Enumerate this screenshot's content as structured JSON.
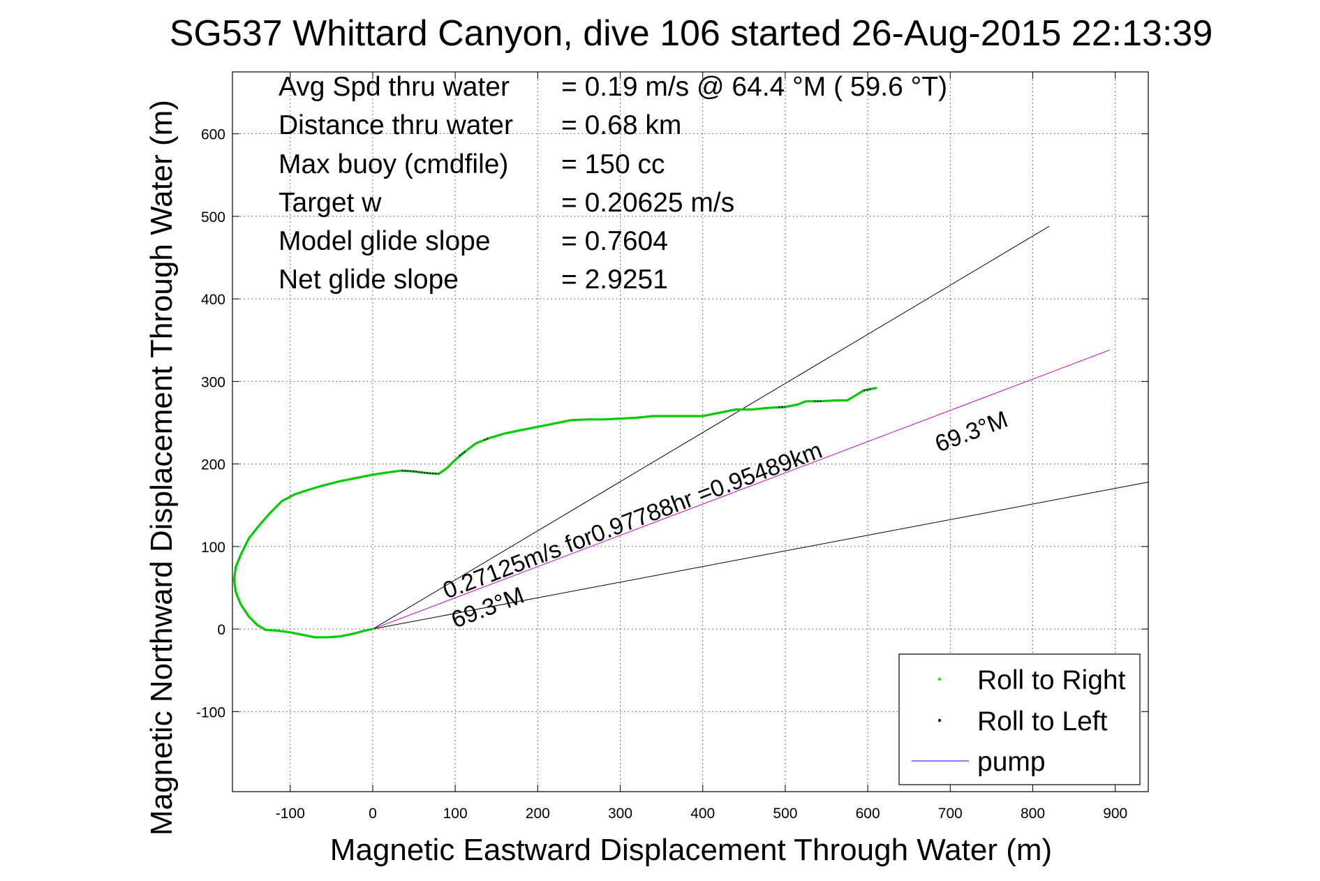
{
  "chart_data": {
    "type": "line",
    "title": "SG537 Whittard Canyon, dive 106 started 26-Aug-2015 22:13:39",
    "xlabel": "Magnetic Eastward Displacement Through Water (m)",
    "ylabel": "Magnetic Northward Displacement Through Water (m)",
    "xlim": [
      -170,
      940
    ],
    "ylim": [
      -197,
      675
    ],
    "xticks": [
      -100,
      0,
      100,
      200,
      300,
      400,
      500,
      600,
      700,
      800,
      900
    ],
    "yticks": [
      -100,
      0,
      100,
      200,
      300,
      400,
      500,
      600
    ],
    "grid": true,
    "legend_position": "bottom-right",
    "info_lines": [
      {
        "label": "Avg Spd thru water",
        "value": "=  0.19 m/s @  64.4 °M ( 59.6 °T)"
      },
      {
        "label": "Distance thru water",
        "value": "=  0.68 km"
      },
      {
        "label": "Max buoy (cmdfile)",
        "value": "= 150 cc"
      },
      {
        "label": "Target w",
        "value": "= 0.20625 m/s"
      },
      {
        "label": "Model glide slope",
        "value": "= 0.7604"
      },
      {
        "label": "Net glide slope",
        "value": "= 2.9251"
      }
    ],
    "legend": [
      {
        "label": "Roll to Right",
        "color": "#00ee00",
        "marker": "dot"
      },
      {
        "label": "Roll to Left",
        "color": "#000033",
        "marker": "dot"
      },
      {
        "label": "pump",
        "color": "#3333ff",
        "marker": "line"
      }
    ],
    "annotations": {
      "current_vector": "0.27125m/s for0.97788hr =0.95489km",
      "heading_near": "69.3°M",
      "heading_far": "69.3°M"
    },
    "track_color": "#00cc00",
    "roll_left_color": "#000033",
    "pump_color": "#3333ff",
    "current_line_color": "#cc00cc",
    "track": [
      [
        0,
        0
      ],
      [
        -10,
        -2
      ],
      [
        -25,
        -6
      ],
      [
        -40,
        -9
      ],
      [
        -55,
        -10
      ],
      [
        -70,
        -10
      ],
      [
        -85,
        -7
      ],
      [
        -100,
        -4
      ],
      [
        -115,
        -2
      ],
      [
        -130,
        -1
      ],
      [
        -140,
        5
      ],
      [
        -150,
        15
      ],
      [
        -160,
        30
      ],
      [
        -166,
        45
      ],
      [
        -168,
        60
      ],
      [
        -166,
        75
      ],
      [
        -160,
        90
      ],
      [
        -150,
        110
      ],
      [
        -138,
        125
      ],
      [
        -125,
        140
      ],
      [
        -110,
        155
      ],
      [
        -95,
        163
      ],
      [
        -80,
        168
      ],
      [
        -60,
        174
      ],
      [
        -40,
        179
      ],
      [
        -20,
        183
      ],
      [
        0,
        187
      ],
      [
        20,
        190
      ],
      [
        35,
        192
      ],
      [
        50,
        191
      ],
      [
        65,
        189
      ],
      [
        80,
        188
      ],
      [
        90,
        195
      ],
      [
        100,
        205
      ],
      [
        112,
        215
      ],
      [
        125,
        225
      ],
      [
        140,
        231
      ],
      [
        160,
        237
      ],
      [
        180,
        241
      ],
      [
        200,
        245
      ],
      [
        220,
        249
      ],
      [
        240,
        253
      ],
      [
        260,
        254
      ],
      [
        280,
        254
      ],
      [
        300,
        255
      ],
      [
        320,
        256
      ],
      [
        340,
        258
      ],
      [
        360,
        258
      ],
      [
        380,
        258
      ],
      [
        400,
        258
      ],
      [
        420,
        262
      ],
      [
        440,
        266
      ],
      [
        460,
        266
      ],
      [
        480,
        268
      ],
      [
        500,
        269
      ],
      [
        515,
        272
      ],
      [
        525,
        276
      ],
      [
        540,
        276
      ],
      [
        560,
        277
      ],
      [
        575,
        277
      ],
      [
        585,
        283
      ],
      [
        595,
        289
      ],
      [
        605,
        291
      ],
      [
        610,
        292
      ]
    ],
    "roll_left_segments": [
      [
        [
          35,
          192
        ],
        [
          50,
          191
        ],
        [
          65,
          189
        ],
        [
          80,
          188
        ]
      ],
      [
        [
          105,
          210
        ],
        [
          112,
          215
        ]
      ],
      [
        [
          135,
          229
        ],
        [
          140,
          231
        ]
      ],
      [
        [
          492,
          269
        ],
        [
          500,
          269
        ]
      ],
      [
        [
          535,
          276
        ],
        [
          545,
          276
        ]
      ],
      [
        [
          595,
          289
        ],
        [
          605,
          291
        ]
      ]
    ],
    "reference_lines": [
      {
        "name": "heading-line-upper",
        "x": [
          0,
          820
        ],
        "y": [
          0,
          488
        ]
      },
      {
        "name": "heading-line-lower",
        "x": [
          0,
          940
        ],
        "y": [
          0,
          178
        ]
      }
    ],
    "current_line": {
      "x": [
        0,
        893
      ],
      "y": [
        0,
        338
      ]
    }
  }
}
